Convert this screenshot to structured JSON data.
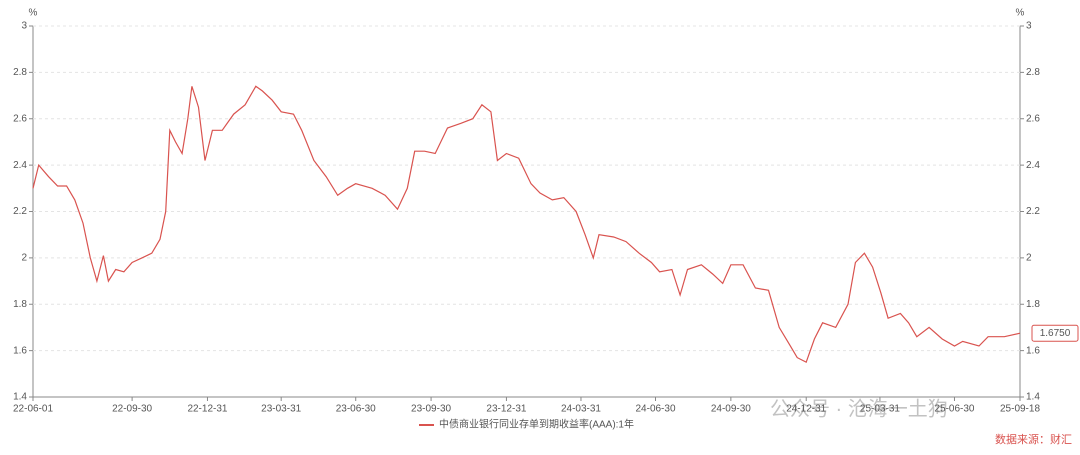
{
  "chart_data": {
    "type": "line",
    "y_unit": "%",
    "y2_unit": "%",
    "ylim": [
      1.4,
      3
    ],
    "yticks": [
      1.4,
      1.6,
      1.8,
      2,
      2.2,
      2.4,
      2.6,
      2.8,
      3
    ],
    "xlim": [
      "22-06-01",
      "25-09-18"
    ],
    "xticks": [
      "22-06-01",
      "22-09-30",
      "22-12-31",
      "23-03-31",
      "23-06-30",
      "23-09-30",
      "23-12-31",
      "24-03-31",
      "24-06-30",
      "24-09-30",
      "24-12-31",
      "25-03-31",
      "25-06-30",
      "25-09-18"
    ],
    "grid": true,
    "legend": "bottom",
    "watermark": "公众号 · 沧海一土狗",
    "source": "数据来源：财汇",
    "x": [
      "22-06-01",
      "22-06-08",
      "22-06-20",
      "22-07-01",
      "22-07-12",
      "22-07-22",
      "22-08-01",
      "22-08-10",
      "22-08-18",
      "22-08-26",
      "22-09-01",
      "22-09-10",
      "22-09-20",
      "22-09-30",
      "22-10-12",
      "22-10-24",
      "22-11-03",
      "22-11-10",
      "22-11-15",
      "22-11-22",
      "22-11-30",
      "22-12-07",
      "22-12-12",
      "22-12-20",
      "22-12-28",
      "23-01-06",
      "23-01-18",
      "23-02-01",
      "23-02-15",
      "23-02-28",
      "23-03-08",
      "23-03-20",
      "23-03-31",
      "23-04-15",
      "23-04-25",
      "23-05-10",
      "23-05-25",
      "23-06-08",
      "23-06-20",
      "23-06-30",
      "23-07-20",
      "23-08-05",
      "23-08-20",
      "23-09-01",
      "23-09-10",
      "23-09-22",
      "23-10-05",
      "23-10-20",
      "23-11-05",
      "23-11-20",
      "23-12-01",
      "23-12-12",
      "23-12-20",
      "23-12-31",
      "24-01-15",
      "24-01-30",
      "24-02-10",
      "24-02-25",
      "24-03-10",
      "24-03-25",
      "24-04-05",
      "24-04-15",
      "24-04-22",
      "24-05-10",
      "24-05-25",
      "24-06-10",
      "24-06-25",
      "24-07-05",
      "24-07-20",
      "24-07-30",
      "24-08-08",
      "24-08-25",
      "24-09-08",
      "24-09-20",
      "24-09-30",
      "24-10-15",
      "24-10-30",
      "24-11-15",
      "24-11-28",
      "24-12-10",
      "24-12-20",
      "24-12-31",
      "25-01-10",
      "25-01-20",
      "25-02-05",
      "25-02-20",
      "25-03-01",
      "25-03-12",
      "25-03-22",
      "25-04-01",
      "25-04-10",
      "25-04-25",
      "25-05-05",
      "25-05-15",
      "25-05-30",
      "25-06-15",
      "25-06-30",
      "25-07-10",
      "25-07-30",
      "25-08-10",
      "25-08-30",
      "25-09-18"
    ],
    "series": [
      {
        "name": "中债商业银行同业存单到期收益率(AAA):1年",
        "color": "#d9534f",
        "values": [
          2.3,
          2.4,
          2.35,
          2.31,
          2.31,
          2.25,
          2.15,
          2.0,
          1.9,
          2.01,
          1.9,
          1.95,
          1.94,
          1.98,
          2.0,
          2.02,
          2.08,
          2.2,
          2.55,
          2.5,
          2.45,
          2.6,
          2.74,
          2.65,
          2.42,
          2.55,
          2.55,
          2.62,
          2.66,
          2.74,
          2.72,
          2.68,
          2.63,
          2.62,
          2.55,
          2.42,
          2.35,
          2.27,
          2.3,
          2.32,
          2.3,
          2.27,
          2.21,
          2.3,
          2.46,
          2.46,
          2.45,
          2.56,
          2.58,
          2.6,
          2.66,
          2.63,
          2.42,
          2.45,
          2.43,
          2.32,
          2.28,
          2.25,
          2.26,
          2.2,
          2.1,
          2.0,
          2.1,
          2.09,
          2.07,
          2.02,
          1.98,
          1.94,
          1.95,
          1.84,
          1.95,
          1.97,
          1.93,
          1.89,
          1.97,
          1.97,
          1.87,
          1.86,
          1.7,
          1.63,
          1.57,
          1.55,
          1.65,
          1.72,
          1.7,
          1.8,
          1.98,
          2.02,
          1.96,
          1.85,
          1.74,
          1.76,
          1.72,
          1.66,
          1.7,
          1.65,
          1.62,
          1.64,
          1.62,
          1.66,
          1.66,
          1.675
        ],
        "value_labels": [
          null,
          null,
          null,
          null,
          null,
          null,
          null,
          null,
          null,
          null,
          null,
          null,
          null,
          null,
          null,
          null,
          null,
          null,
          null,
          null,
          null,
          null,
          null,
          null,
          null,
          null,
          null,
          null,
          null,
          null,
          null,
          null,
          null,
          null,
          null,
          null,
          null,
          null,
          null,
          null,
          null,
          null,
          null,
          null,
          null,
          null,
          null,
          null,
          null,
          null,
          null,
          null,
          null,
          null,
          null,
          null,
          null,
          null,
          null,
          null,
          null,
          null,
          null,
          null,
          null,
          null,
          null,
          null,
          null,
          null,
          null,
          null,
          null,
          null,
          null,
          null,
          null,
          null,
          null,
          null,
          null,
          null,
          null,
          null,
          null,
          null,
          null,
          null,
          null,
          null,
          null,
          null,
          null,
          null,
          null,
          null,
          null,
          null,
          null,
          null,
          null,
          "1.6750"
        ]
      }
    ]
  }
}
